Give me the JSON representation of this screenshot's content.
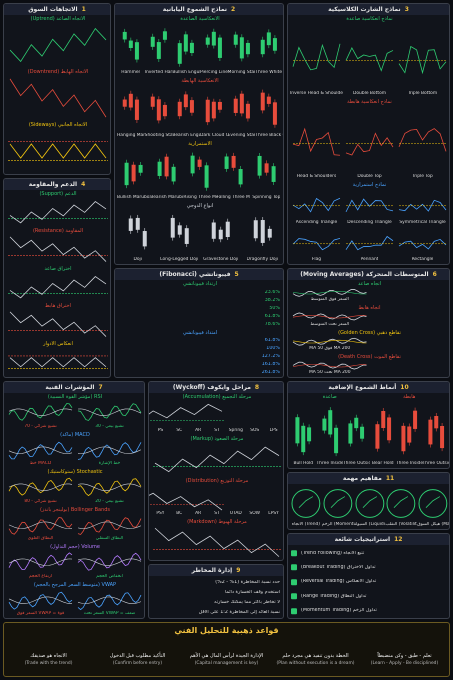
{
  "footer": {
    "title": "قواعد ذهبية للتحليل الفني",
    "rules": [
      {
        "ar": "الاتجاه هو صديقك",
        "en": "(Trade with the trend)"
      },
      {
        "ar": "التأكيد مطلوب قبل الدخول",
        "en": "(Confirm before entry)"
      },
      {
        "ar": "الإدارة الجيدة لرأس المال هي الأهم",
        "en": "(Capital management is key)"
      },
      {
        "ar": "الخطة بدون تنفيذ هي مجرد حلم",
        "en": "(Plan without execution is a dream)"
      },
      {
        "ar": "تعلم - طبق - وكن منضبطاً",
        "en": "(Learn - Apply - Be disciplined)"
      }
    ]
  },
  "panels": [
    {
      "number": "1",
      "title": "الاتجاهات السوق",
      "sections": [
        {
          "title": "الاتجاه الصاعد (Uptrend)",
          "items": [
            ""
          ]
        },
        {
          "title": "الاتجاه الهابط (Downtrend)",
          "items": [
            ""
          ]
        },
        {
          "title": "الاتجاه الجانبي (Sideways)",
          "items": [
            ""
          ]
        }
      ]
    },
    {
      "number": "2",
      "title": "نماذج الشموع اليابانية",
      "sections": [
        {
          "title": "الانعكاسية الصاعدة",
          "items": [
            "Hammer",
            "Inverted Hammer",
            "Bullish Engulfing",
            "Piercing Line",
            "Morning Star",
            "Three White Soldiers"
          ]
        },
        {
          "title": "الانعكاسية الهابطة",
          "items": [
            "Hanging Man",
            "Shooting Star",
            "Bearish Engulfing",
            "Dark Cloud Cover",
            "Evening Star",
            "Three Black Crows"
          ]
        },
        {
          "title": "الاستمرارية",
          "items": [
            "Bullish Marubozu",
            "Bearish Marubozu",
            "Rising Three Method",
            "Falling Three Method",
            "Spinning Top"
          ]
        },
        {
          "title": "أنواع الدوجي",
          "items": [
            "Doji",
            "Long-Legged Doji",
            "Gravestone Doji",
            "Dragonfly Doji"
          ]
        }
      ]
    },
    {
      "number": "3",
      "title": "نماذج الشارت الكلاسيكية",
      "sections": [
        {
          "title": "نماذج انعكاسية صاعدة",
          "items": [
            "Inverse Head & Shoulders",
            "Double Bottom",
            "Triple Bottom"
          ]
        },
        {
          "title": "نماذج انعكاسية هابطة",
          "items": [
            "Head & Shoulders",
            "Double Top",
            "Triple Top"
          ]
        },
        {
          "title": "نماذج استمرارية",
          "items": [
            "Ascending Triangle",
            "Descending Triangle",
            "Symmetrical Triangle",
            "Flag",
            "Pennant",
            "Rectangle"
          ]
        }
      ]
    },
    {
      "number": "4",
      "title": "الدعم والمقاومة",
      "sections": [
        {
          "title": "الدعم (Support)",
          "items": [
            ""
          ]
        },
        {
          "title": "المقاومة (Resistance)",
          "items": [
            ""
          ]
        },
        {
          "title": "اختراق صاعد",
          "items": [
            ""
          ]
        },
        {
          "title": "اختراق هابط",
          "items": [
            ""
          ]
        },
        {
          "title": "انعكاس الأدوار",
          "items": [
            ""
          ]
        }
      ]
    },
    {
      "number": "5",
      "title": "فيبوناتشي (Fibonacci)",
      "sections": [
        {
          "title": "ارتداد فيبوناتشي",
          "items": [
            "23.6%",
            "38.2%",
            "50%",
            "61.8%",
            "78.6%"
          ]
        },
        {
          "title": "امتداد فيبوناتشي",
          "items": [
            "61.8%",
            "100%",
            "127.2%",
            "161.8%",
            "261.8%"
          ]
        }
      ]
    },
    {
      "number": "6",
      "title": "المتوسطات المتحركة (Moving Averages)",
      "sections": [
        {
          "title": "اتجاه صاعد",
          "items": [
            "السعر فوق المتوسط"
          ]
        },
        {
          "title": "اتجاه هابط",
          "items": [
            "السعر تحت المتوسط"
          ]
        },
        {
          "title": "تقاطع ذهبي (Golden Cross)",
          "items": [
            "MA 50 فوق MA 200"
          ]
        },
        {
          "title": "تقاطع الموت (Death Cross)",
          "items": [
            "MA 50 تحت MA 200"
          ]
        }
      ]
    },
    {
      "number": "7",
      "title": "المؤشرات الفنية",
      "sections": [
        {
          "title": "RSI (مؤشر القوة النسبية)",
          "items": [
            "70 - تشبع شرائي",
            "30 - تشبع بيعي"
          ]
        },
        {
          "title": "MACD (ماكد)",
          "items": [
            "خط MACD",
            "خط الإشارة"
          ]
        },
        {
          "title": "Stochastic (ستوكاستيك)",
          "items": [
            "80 - تشبع شرائي",
            "20 - تشبع بيعي"
          ]
        },
        {
          "title": "Bollinger Bands (بولينجر باندز)",
          "items": [
            "النطاق العلوي",
            "النطاق السفلي"
          ]
        },
        {
          "title": "Volume (حجم التداول)",
          "items": [
            "ارتفاع الحجم",
            "انخفاض الحجم"
          ]
        },
        {
          "title": "VWAP (متوسط السعر المرجح بالحجم)",
          "items": [
            "السعر فوق VWAP = قوة",
            "السعر تحت VWAP = ضعف"
          ]
        }
      ]
    },
    {
      "number": "8",
      "title": "مراحل وايكوف (Wyckoff)",
      "sections": [
        {
          "title": "مرحلة التجميع (Accumulation)",
          "items": [
            "PS",
            "SC",
            "AR",
            "ST",
            "Spring",
            "SOS",
            "LPS"
          ]
        },
        {
          "title": "مرحلة الصعود (Markup)",
          "items": [
            ""
          ]
        },
        {
          "title": "مرحلة التوزيع (Distribution)",
          "items": [
            "PSY",
            "BC",
            "AR",
            "ST",
            "UTAD",
            "SOW",
            "LPSY"
          ]
        },
        {
          "title": "مرحلة الهبوط (Markdown)",
          "items": [
            ""
          ]
        }
      ]
    },
    {
      "number": "9",
      "title": "إدارة المخاطر",
      "sections": [
        {
          "title": "",
          "items": [
            "حدد نسبة المخاطرة (1% - 2%)",
            "استخدم وقف الخسارة دائماً",
            "لا تخاطر بأكثر مما يمكنك خسارته",
            "نسبة العائد إلى المخاطرة 1:2 على الأقل"
          ]
        }
      ]
    },
    {
      "number": "10",
      "title": "أنماط الشموع الإضافية",
      "sections": [
        {
          "title": "صاعدة",
          "items": [
            "Bull Hold",
            "Three Inside Up",
            "Three Outside Up"
          ]
        },
        {
          "title": "هابطة",
          "items": [
            "Bear Hold",
            "Three Inside Down",
            "Three Outside Down"
          ]
        }
      ]
    },
    {
      "number": "11",
      "title": "مفاهيم مهمة",
      "sections": [
        {
          "title": "",
          "items": [
            "الاتجاه (Trend)",
            "الزخم (Momentum)",
            "السيولة (Liquidity)",
            "التقلب (Volatility)",
            "هيكل السوق (Market Structure)"
          ]
        }
      ]
    },
    {
      "number": "12",
      "title": "استراتيجيات شائعة",
      "sections": [
        {
          "title": "",
          "items": [
            "تتبع الاتجاه (Trend Following)",
            "تداول الاختراق (Breakout Trading)",
            "تداول الانعكاس (Reversal Trading)",
            "تداول النطاق (Range Trading)",
            "تداول الزخم (Momentum Trading)"
          ]
        }
      ]
    }
  ]
}
